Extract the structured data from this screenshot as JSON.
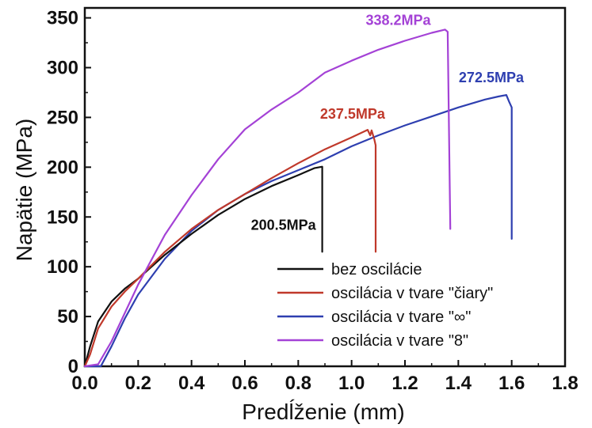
{
  "chart_data": {
    "type": "line",
    "xlabel": "Predĺženie (mm)",
    "ylabel": "Napätie (MPa)",
    "xlim": [
      0,
      1.8
    ],
    "ylim": [
      0,
      360
    ],
    "xticks": [
      "0.0",
      "0.2",
      "0.4",
      "0.6",
      "0.8",
      "1.0",
      "1.2",
      "1.4",
      "1.6",
      "1.8"
    ],
    "yticks": [
      "0",
      "50",
      "100",
      "150",
      "200",
      "250",
      "300",
      "350"
    ],
    "grid": false,
    "legend": "bottom-right",
    "series": [
      {
        "name": "bez oscilácie",
        "color": "#111111",
        "x": [
          0,
          0.02,
          0.05,
          0.1,
          0.15,
          0.2,
          0.3,
          0.4,
          0.5,
          0.6,
          0.7,
          0.8,
          0.86,
          0.89,
          0.89
        ],
        "y": [
          0,
          20,
          45,
          65,
          78,
          88,
          112,
          133,
          152,
          168,
          181,
          192,
          199,
          200.5,
          115
        ]
      },
      {
        "name": "oscilácia v tvare \"čiary\"",
        "color": "#c0392b",
        "x": [
          0,
          0.02,
          0.05,
          0.1,
          0.15,
          0.2,
          0.3,
          0.4,
          0.5,
          0.6,
          0.7,
          0.8,
          0.9,
          1.0,
          1.06,
          1.07,
          1.075,
          1.085,
          1.09,
          1.09
        ],
        "y": [
          0,
          12,
          38,
          60,
          75,
          88,
          115,
          138,
          157,
          173,
          189,
          204,
          218,
          230,
          237.5,
          232,
          237,
          228,
          222,
          115
        ]
      },
      {
        "name": "oscilácia v tvare \"∞\"",
        "color": "#2e3fb0",
        "x": [
          0,
          0.06,
          0.1,
          0.15,
          0.2,
          0.3,
          0.4,
          0.5,
          0.6,
          0.7,
          0.8,
          0.9,
          1.0,
          1.1,
          1.2,
          1.3,
          1.4,
          1.5,
          1.55,
          1.58,
          1.59,
          1.6,
          1.6
        ],
        "y": [
          0,
          0,
          20,
          48,
          72,
          108,
          136,
          157,
          173,
          186,
          197,
          208,
          221,
          232,
          242,
          251,
          260,
          268,
          271,
          272.5,
          266,
          260,
          128
        ]
      },
      {
        "name": "oscilácia v tvare \"8\"",
        "color": "#a442d6",
        "x": [
          0,
          0.05,
          0.1,
          0.2,
          0.3,
          0.4,
          0.5,
          0.6,
          0.7,
          0.8,
          0.9,
          1.0,
          1.1,
          1.2,
          1.3,
          1.35,
          1.36,
          1.37
        ],
        "y": [
          0,
          2,
          25,
          82,
          132,
          172,
          208,
          238,
          258,
          275,
          295,
          307,
          318,
          327,
          335,
          338.2,
          336,
          138
        ]
      }
    ],
    "annotations": [
      {
        "text": "200.5MPa",
        "x": 0.89,
        "y": 200.5,
        "color": "#111111"
      },
      {
        "text": "237.5MPa",
        "x": 1.06,
        "y": 237.5,
        "color": "#c0392b"
      },
      {
        "text": "272.5MPa",
        "x": 1.58,
        "y": 272.5,
        "color": "#2e3fb0"
      },
      {
        "text": "338.2MPa",
        "x": 1.35,
        "y": 338.2,
        "color": "#a442d6"
      }
    ]
  }
}
